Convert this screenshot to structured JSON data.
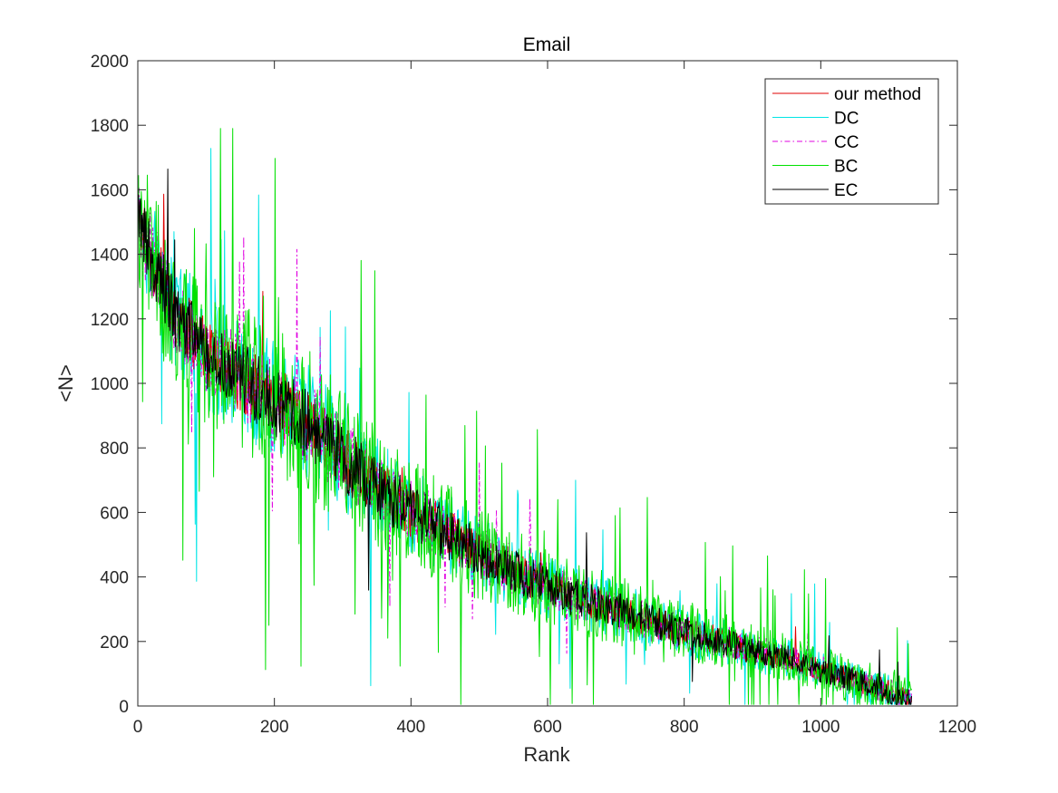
{
  "chart_data": {
    "type": "line",
    "title": "Email",
    "xlabel": "Rank",
    "ylabel": "<N>",
    "xlim": [
      0,
      1200
    ],
    "ylim": [
      0,
      2000
    ],
    "xticks": [
      0,
      200,
      400,
      600,
      800,
      1000,
      1200
    ],
    "yticks": [
      0,
      200,
      400,
      600,
      800,
      1000,
      1200,
      1400,
      1600,
      1800,
      2000
    ],
    "xtick_labels": [
      "0",
      "200",
      "400",
      "600",
      "800",
      "1000",
      "1200"
    ],
    "ytick_labels": [
      "0",
      "200",
      "400",
      "600",
      "800",
      "1000",
      "1200",
      "1400",
      "1600",
      "1800",
      "2000"
    ],
    "grid": false,
    "legend_position": "top-right",
    "rank_count": 1133,
    "mean_trend": {
      "x": [
        0,
        50,
        100,
        150,
        200,
        250,
        300,
        350,
        400,
        450,
        500,
        550,
        600,
        650,
        700,
        750,
        800,
        850,
        900,
        950,
        1000,
        1050,
        1100,
        1133
      ],
      "y": [
        1500,
        1230,
        1100,
        1020,
        950,
        880,
        770,
        680,
        600,
        540,
        470,
        420,
        370,
        330,
        300,
        265,
        230,
        205,
        170,
        150,
        110,
        80,
        45,
        10
      ]
    },
    "series": [
      {
        "name": "our method",
        "color": "#e00000",
        "dash": "solid",
        "amplitude": 90,
        "spikes": 0.01
      },
      {
        "name": "DC",
        "color": "#00e5e5",
        "dash": "solid",
        "amplitude": 150,
        "spikes": 0.03
      },
      {
        "name": "CC",
        "color": "#e000e0",
        "dash": "dashdot",
        "amplitude": 110,
        "spikes": 0.015
      },
      {
        "name": "BC",
        "color": "#00e000",
        "dash": "solid",
        "amplitude": 190,
        "spikes": 0.08
      },
      {
        "name": "EC",
        "color": "#000000",
        "dash": "solid",
        "amplitude": 95,
        "spikes": 0.01
      }
    ]
  }
}
